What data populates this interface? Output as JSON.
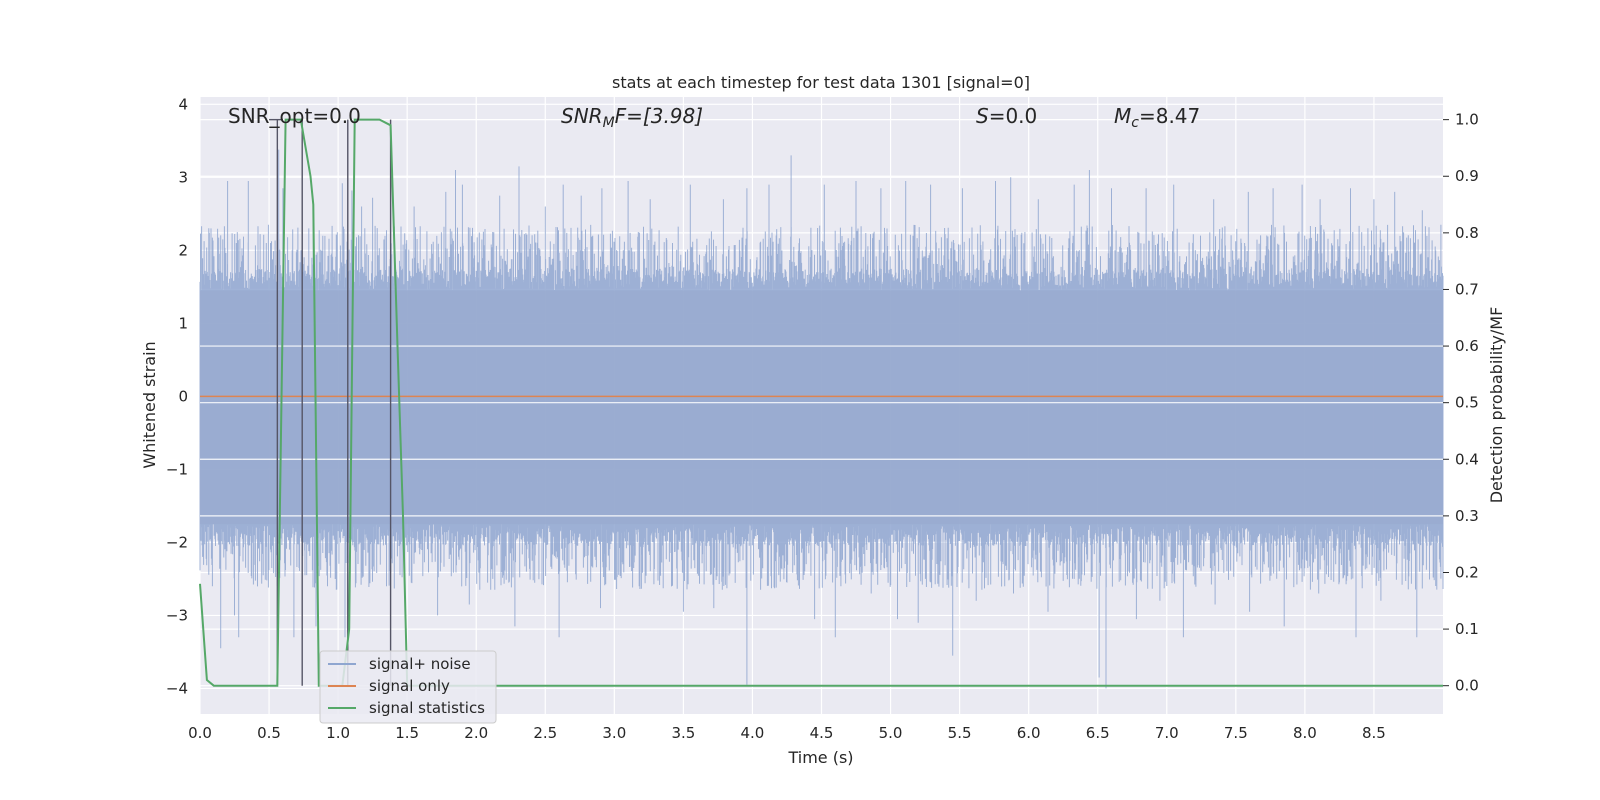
{
  "chart_data": {
    "type": "line",
    "title": "stats at each timestep for test data 1301 [signal=0]",
    "xlabel": "Time (s)",
    "ylabel_left": "Whitened strain",
    "ylabel_right": "Detection probability/MF",
    "xlim": [
      0.0,
      9.0
    ],
    "ylim_left": [
      -4.35,
      4.1
    ],
    "ylim_right": [
      -0.05,
      1.04
    ],
    "x_ticks": [
      "0.0",
      "0.5",
      "1.0",
      "1.5",
      "2.0",
      "2.5",
      "3.0",
      "3.5",
      "4.0",
      "4.5",
      "5.0",
      "5.5",
      "6.0",
      "6.5",
      "7.0",
      "7.5",
      "8.0",
      "8.5"
    ],
    "x_tick_values": [
      0.0,
      0.5,
      1.0,
      1.5,
      2.0,
      2.5,
      3.0,
      3.5,
      4.0,
      4.5,
      5.0,
      5.5,
      6.0,
      6.5,
      7.0,
      7.5,
      8.0,
      8.5
    ],
    "y_left_ticks": [
      "4",
      "3",
      "2",
      "1",
      "0",
      "−1",
      "−2",
      "−3",
      "−4"
    ],
    "y_left_tick_values": [
      4,
      3,
      2,
      1,
      0,
      -1,
      -2,
      -3,
      -4
    ],
    "y_right_ticks": [
      "1.0",
      "0.9",
      "0.8",
      "0.7",
      "0.6",
      "0.5",
      "0.4",
      "0.3",
      "0.2",
      "0.1",
      "0.0"
    ],
    "y_right_tick_values": [
      1.0,
      0.9,
      0.8,
      0.7,
      0.6,
      0.5,
      0.4,
      0.3,
      0.2,
      0.1,
      0.0
    ],
    "grid": true,
    "legend_position": "lower-left",
    "annotations": {
      "snr_opt": "SNR_opt=0.0",
      "snr_mf_main": "SNR",
      "snr_mf_sub": "M",
      "snr_mf_rest": "F=[3.98]",
      "s_main": "S",
      "s_rest": "=0.0",
      "mc_main": "M",
      "mc_sub": "c",
      "mc_rest": "=8.47"
    },
    "series": [
      {
        "name": "signal+ noise",
        "color": "#8fa6d0",
        "description_values": {
          "duration_s": 9.0,
          "typical_envelope": [
            -1.75,
            1.45
          ],
          "peak_times": [
            0.08,
            0.2,
            0.27,
            0.35,
            0.48,
            0.57,
            0.6,
            0.74,
            0.82,
            1.03,
            1.1,
            1.17,
            1.25,
            1.38,
            1.55,
            1.78,
            1.85,
            1.9,
            2.17,
            2.31,
            2.5,
            2.63,
            2.76,
            2.91,
            3.1,
            3.26,
            3.55,
            3.79,
            3.96,
            4.12,
            4.28,
            4.52,
            4.75,
            4.93,
            5.11,
            5.29,
            5.52,
            5.76,
            5.87,
            6.07,
            6.33,
            6.44,
            6.6,
            6.85,
            7.05,
            7.34,
            7.59,
            7.77,
            7.98,
            8.11,
            8.33,
            8.5,
            8.65,
            8.85
          ],
          "peak_values": [
            2.3,
            2.95,
            2.25,
            2.95,
            2.1,
            3.38,
            2.85,
            3.1,
            2.5,
            2.92,
            2.82,
            2.6,
            2.72,
            3.0,
            2.6,
            2.8,
            3.1,
            2.9,
            2.75,
            3.15,
            2.6,
            2.9,
            2.75,
            2.85,
            2.95,
            2.7,
            2.9,
            2.7,
            2.85,
            2.9,
            3.3,
            2.9,
            2.95,
            2.85,
            2.95,
            2.9,
            2.85,
            2.95,
            3.0,
            2.7,
            2.9,
            3.1,
            2.85,
            2.85,
            2.9,
            2.7,
            2.8,
            2.85,
            2.9,
            2.7,
            2.85,
            2.7,
            2.8,
            2.55
          ],
          "trough_times": [
            0.09,
            0.15,
            0.25,
            0.28,
            0.52,
            0.56,
            0.68,
            0.76,
            0.84,
            1.05,
            1.35,
            1.53,
            1.72,
            1.95,
            2.12,
            2.28,
            2.6,
            2.9,
            3.18,
            3.5,
            3.72,
            3.96,
            4.25,
            4.45,
            4.6,
            4.86,
            5.05,
            5.2,
            5.45,
            5.62,
            5.89,
            6.14,
            6.33,
            6.51,
            6.56,
            6.78,
            6.95,
            7.12,
            7.35,
            7.6,
            7.85,
            8.1,
            8.37,
            8.55,
            8.81
          ],
          "trough_values": [
            -2.6,
            -3.45,
            -3.0,
            -3.3,
            -2.35,
            -2.6,
            -3.3,
            -2.45,
            -3.15,
            -3.3,
            -2.6,
            -2.55,
            -3.0,
            -2.85,
            -2.5,
            -3.15,
            -3.3,
            -2.9,
            -2.6,
            -2.95,
            -2.9,
            -3.95,
            -2.55,
            -3.05,
            -3.3,
            -2.7,
            -3.05,
            -3.1,
            -3.55,
            -2.8,
            -2.7,
            -2.95,
            -2.5,
            -3.85,
            -4.0,
            -3.05,
            -2.8,
            -3.3,
            -2.85,
            -2.95,
            -3.15,
            -2.7,
            -3.3,
            -2.8,
            -3.3
          ]
        }
      },
      {
        "name": "signal only",
        "color": "#dd8452",
        "x": [
          0.0,
          9.0
        ],
        "y": [
          0.0,
          0.0
        ]
      },
      {
        "name": "signal statistics",
        "color": "#55a868",
        "axis": "right",
        "x": [
          0.0,
          0.05,
          0.1,
          0.55,
          0.56,
          0.62,
          0.73,
          0.8,
          0.82,
          0.86,
          1.03,
          1.08,
          1.12,
          1.15,
          1.3,
          1.38,
          1.43,
          1.47,
          1.5,
          9.0
        ],
        "y": [
          0.18,
          0.01,
          0.0,
          0.0,
          0.0,
          1.0,
          1.0,
          0.9,
          0.85,
          0.0,
          0.0,
          0.1,
          1.0,
          1.0,
          1.0,
          0.99,
          0.6,
          0.3,
          0.0,
          0.0
        ]
      }
    ],
    "markers": {
      "vertical_lines_x": [
        0.56,
        0.74,
        1.07,
        1.38
      ],
      "vertical_lines_top": [
        1.0,
        1.0,
        1.0,
        1.0
      ],
      "vertical_lines_color": "#555566",
      "horizontal_tick_top": 1.0
    },
    "legend": [
      {
        "label": "signal+ noise",
        "color": "#8fa6d0"
      },
      {
        "label": "signal only",
        "color": "#dd8452"
      },
      {
        "label": "signal statistics",
        "color": "#55a868"
      }
    ],
    "colors": {
      "plot_background": "#eaeaf2",
      "grid": "#ffffff",
      "noise_fill": "#9aacd0"
    }
  }
}
